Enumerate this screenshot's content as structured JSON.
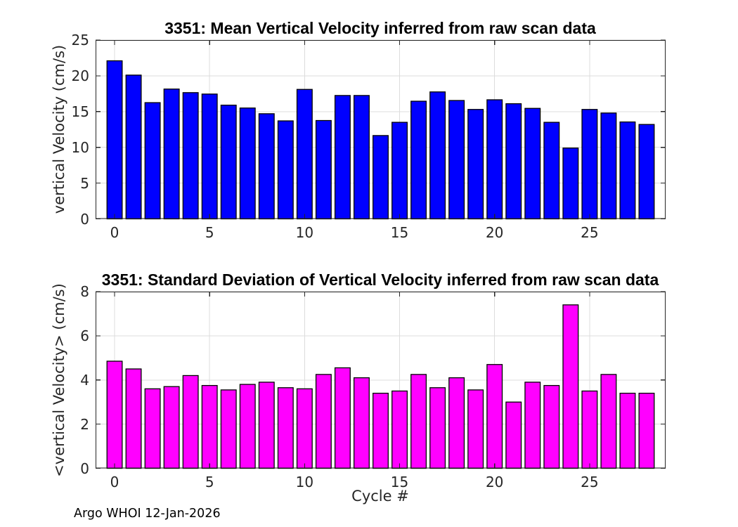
{
  "figure": {
    "footer": "Argo WHOI 12-Jan-2026"
  },
  "chart_data": [
    {
      "type": "bar",
      "title": "3351: Mean Vertical Velocity inferred from raw scan data",
      "ylabel": "vertical Velocity (cm/s)",
      "xlabel": "",
      "bar_color": "#0000FF",
      "edge_color": "#000000",
      "grid": true,
      "xlim": [
        -1,
        29
      ],
      "ylim": [
        0,
        25
      ],
      "xticks": [
        0,
        5,
        10,
        15,
        20,
        25
      ],
      "yticks": [
        0,
        5,
        10,
        15,
        20,
        25
      ],
      "x": [
        0,
        1,
        2,
        3,
        4,
        5,
        6,
        7,
        8,
        9,
        10,
        11,
        12,
        13,
        14,
        15,
        16,
        17,
        18,
        19,
        20,
        21,
        22,
        23,
        24,
        25,
        26,
        27,
        28
      ],
      "values": [
        22.1,
        20.1,
        16.25,
        18.15,
        17.65,
        17.45,
        15.9,
        15.5,
        14.7,
        13.7,
        18.1,
        13.75,
        17.25,
        17.25,
        11.65,
        13.5,
        16.45,
        17.75,
        16.55,
        15.3,
        16.65,
        16.1,
        15.45,
        13.5,
        9.9,
        15.3,
        14.8,
        13.55,
        13.2
      ]
    },
    {
      "type": "bar",
      "title": "3351: Standard Deviation of Vertical Velocity inferred from raw scan data",
      "ylabel": "<vertical Velocity> (cm/s)",
      "xlabel": "Cycle #",
      "bar_color": "#FF00FF",
      "edge_color": "#000000",
      "grid": true,
      "xlim": [
        -1,
        29
      ],
      "ylim": [
        0,
        8
      ],
      "xticks": [
        0,
        5,
        10,
        15,
        20,
        25
      ],
      "yticks": [
        0,
        2,
        4,
        6,
        8
      ],
      "x": [
        0,
        1,
        2,
        3,
        4,
        5,
        6,
        7,
        8,
        9,
        10,
        11,
        12,
        13,
        14,
        15,
        16,
        17,
        18,
        19,
        20,
        21,
        22,
        23,
        24,
        25,
        26,
        27,
        28
      ],
      "values": [
        4.85,
        4.5,
        3.6,
        3.7,
        4.2,
        3.75,
        3.55,
        3.8,
        3.9,
        3.65,
        3.6,
        4.25,
        4.55,
        4.1,
        3.4,
        3.5,
        4.25,
        3.65,
        4.1,
        3.55,
        4.7,
        3.0,
        3.9,
        3.75,
        7.4,
        3.5,
        4.25,
        3.4,
        3.4
      ]
    }
  ],
  "style": {
    "grid_color": "#DCDCDC",
    "axis_color": "#262626",
    "background": "#FFFFFF"
  }
}
